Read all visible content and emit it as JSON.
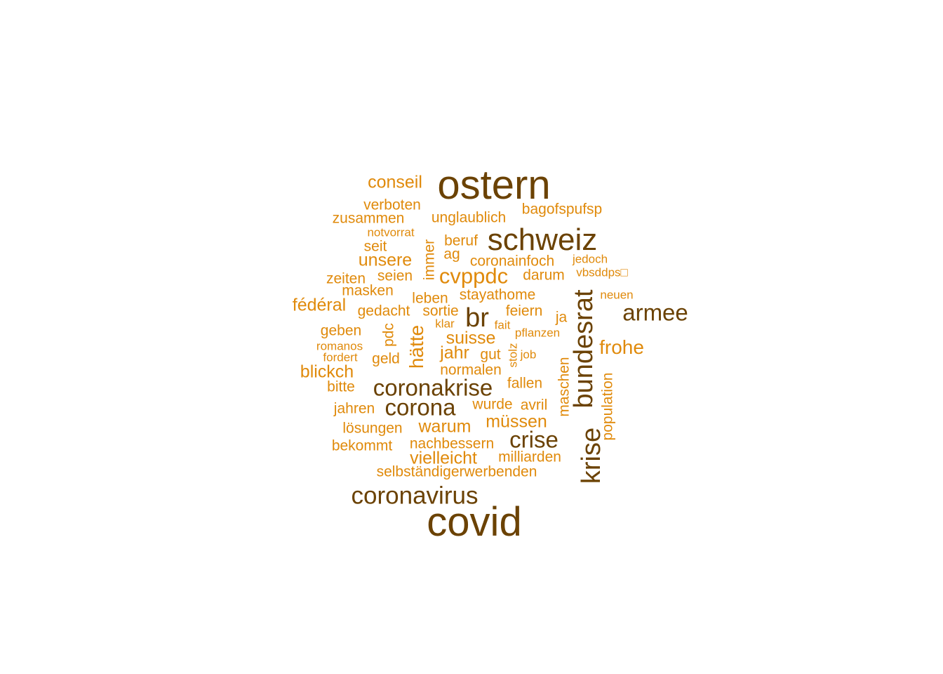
{
  "words": [
    {
      "text": "ostern",
      "tone": "dark"
    },
    {
      "text": "covid",
      "tone": "dark"
    },
    {
      "text": "schweiz",
      "tone": "dark"
    },
    {
      "text": "bundesrat",
      "tone": "dark"
    },
    {
      "text": "krise",
      "tone": "dark"
    },
    {
      "text": "coronavirus",
      "tone": "dark"
    },
    {
      "text": "coronakrise",
      "tone": "dark"
    },
    {
      "text": "corona",
      "tone": "dark"
    },
    {
      "text": "crise",
      "tone": "dark"
    },
    {
      "text": "armee",
      "tone": "dark"
    },
    {
      "text": "br",
      "tone": "dark"
    },
    {
      "text": "cvppdc",
      "tone": "light"
    },
    {
      "text": "frohe",
      "tone": "light"
    },
    {
      "text": "conseil",
      "tone": "light"
    },
    {
      "text": "verboten",
      "tone": "light"
    },
    {
      "text": "zusammen",
      "tone": "light"
    },
    {
      "text": "unglaublich",
      "tone": "light"
    },
    {
      "text": "bagofspufsp",
      "tone": "light"
    },
    {
      "text": "notvorrat",
      "tone": "light"
    },
    {
      "text": "beruf",
      "tone": "light"
    },
    {
      "text": "seit",
      "tone": "light"
    },
    {
      "text": "immer",
      "tone": "light"
    },
    {
      "text": "ag",
      "tone": "light"
    },
    {
      "text": "coronainfoch",
      "tone": "light"
    },
    {
      "text": "jedoch",
      "tone": "light"
    },
    {
      "text": "unsere",
      "tone": "light"
    },
    {
      "text": "vbsddps□",
      "tone": "light"
    },
    {
      "text": "zeiten",
      "tone": "light"
    },
    {
      "text": "seien",
      "tone": "light"
    },
    {
      "text": "darum",
      "tone": "light"
    },
    {
      "text": "masken",
      "tone": "light"
    },
    {
      "text": "leben",
      "tone": "light"
    },
    {
      "text": "stayathome",
      "tone": "light"
    },
    {
      "text": "neuen",
      "tone": "light"
    },
    {
      "text": "fédéral",
      "tone": "light"
    },
    {
      "text": "gedacht",
      "tone": "light"
    },
    {
      "text": "sortie",
      "tone": "light"
    },
    {
      "text": "feiern",
      "tone": "light"
    },
    {
      "text": "ja",
      "tone": "light"
    },
    {
      "text": "geben",
      "tone": "light"
    },
    {
      "text": "pdc",
      "tone": "light"
    },
    {
      "text": "klar",
      "tone": "light"
    },
    {
      "text": "fait",
      "tone": "light"
    },
    {
      "text": "pflanzen",
      "tone": "light"
    },
    {
      "text": "hätte",
      "tone": "light"
    },
    {
      "text": "suisse",
      "tone": "light"
    },
    {
      "text": "romanos",
      "tone": "light"
    },
    {
      "text": "jahr",
      "tone": "light"
    },
    {
      "text": "gut",
      "tone": "light"
    },
    {
      "text": "stolz",
      "tone": "light"
    },
    {
      "text": "job",
      "tone": "light"
    },
    {
      "text": "fordert",
      "tone": "light"
    },
    {
      "text": "geld",
      "tone": "light"
    },
    {
      "text": "blickch",
      "tone": "light"
    },
    {
      "text": "normalen",
      "tone": "light"
    },
    {
      "text": "maschen",
      "tone": "light"
    },
    {
      "text": "population",
      "tone": "light"
    },
    {
      "text": "bitte",
      "tone": "light"
    },
    {
      "text": "fallen",
      "tone": "light"
    },
    {
      "text": "jahren",
      "tone": "light"
    },
    {
      "text": "wurde",
      "tone": "light"
    },
    {
      "text": "avril",
      "tone": "light"
    },
    {
      "text": "lösungen",
      "tone": "light"
    },
    {
      "text": "warum",
      "tone": "light"
    },
    {
      "text": "müssen",
      "tone": "light"
    },
    {
      "text": "bekommt",
      "tone": "light"
    },
    {
      "text": "nachbessern",
      "tone": "light"
    },
    {
      "text": "vielleicht",
      "tone": "light"
    },
    {
      "text": "milliarden",
      "tone": "light"
    },
    {
      "text": "selbständigerwerbenden",
      "tone": "light"
    }
  ],
  "colors": {
    "dark": "#6b4204",
    "light": "#e08a0b",
    "background": "#ffffff"
  }
}
